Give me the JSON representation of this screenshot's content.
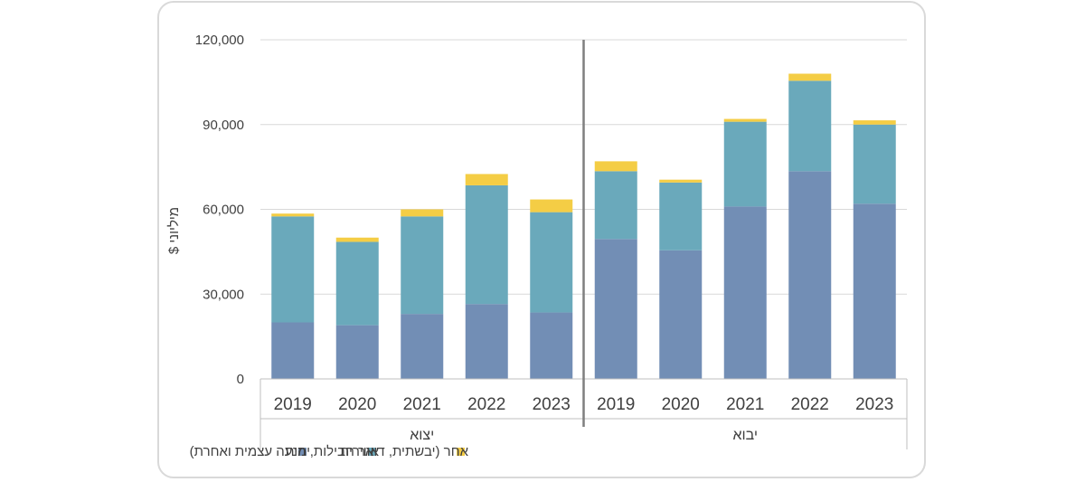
{
  "chart_data": {
    "type": "bar",
    "stacked": true,
    "ylabel": "מיליוני $",
    "ylim": [
      0,
      120000
    ],
    "yticks": [
      "0",
      "30,000",
      "60,000",
      "90,000",
      "120,000"
    ],
    "ytick_values": [
      0,
      30000,
      60000,
      90000,
      120000
    ],
    "grid": true,
    "legend_position": "bottom",
    "groups": [
      {
        "label": "יצוא",
        "categories": [
          "2019",
          "2020",
          "2021",
          "2022",
          "2023"
        ]
      },
      {
        "label": "יבוא",
        "categories": [
          "2019",
          "2020",
          "2021",
          "2022",
          "2023"
        ]
      }
    ],
    "series": [
      {
        "name": "ימית",
        "color": "#728eb5",
        "values": [
          20000,
          19000,
          23000,
          26500,
          23500,
          49500,
          45500,
          61000,
          73500,
          62000
        ]
      },
      {
        "name": "אווירית",
        "color": "#6aa9bb",
        "values": [
          37500,
          29500,
          34500,
          42000,
          35500,
          24000,
          24000,
          30000,
          32000,
          28000
        ]
      },
      {
        "name": "אחר (יבשתית, דואר חבילות, הנעה עצמית ואחרת)",
        "color": "#f4cd45",
        "values": [
          1000,
          1500,
          2500,
          4000,
          4500,
          3500,
          1000,
          1000,
          2500,
          1500
        ]
      }
    ]
  }
}
